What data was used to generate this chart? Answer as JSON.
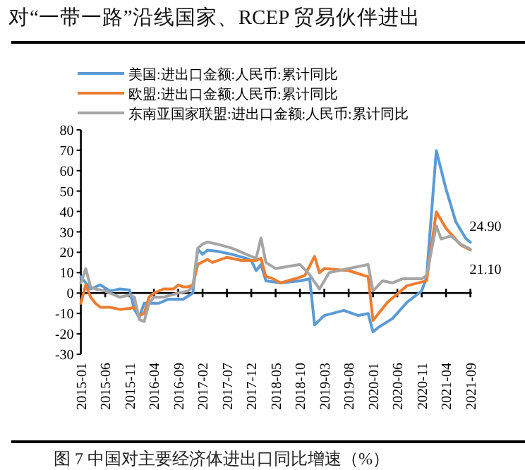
{
  "chart_data": {
    "type": "line",
    "title": "对“一带一路”沿线国家、RCEP 贸易伙伴进出",
    "annotations": [
      "图 7  中国对主要经济体进出口同比增速（%）",
      {
        "text": "24.90",
        "x": "2021-09",
        "y": 24.9
      },
      {
        "text": "21.10",
        "x": "2021-09",
        "y": 21.1
      }
    ],
    "xlim": [
      "2015-01",
      "2021-09"
    ],
    "xticks": [
      "2015-01",
      "2015-06",
      "2015-11",
      "2016-04",
      "2016-09",
      "2017-02",
      "2017-07",
      "2017-12",
      "2018-05",
      "2018-10",
      "2019-03",
      "2019-08",
      "2020-01",
      "2020-06",
      "2020-11",
      "2021-04",
      "2021-09"
    ],
    "ylim": [
      -30,
      80
    ],
    "yticks": [
      -30,
      -20,
      -10,
      0,
      10,
      20,
      30,
      40,
      50,
      60,
      70,
      80
    ],
    "legend": "top",
    "line_style": "solid",
    "marker": "none",
    "series": [
      {
        "name": "美国:进出口金额:人民币:累计同比",
        "color": "#5b9bd5",
        "x": [
          "2015-01",
          "2015-03",
          "2015-05",
          "2015-07",
          "2015-09",
          "2015-11",
          "2015-12",
          "2016-01",
          "2016-02",
          "2016-05",
          "2016-07",
          "2016-10",
          "2016-12",
          "2017-01",
          "2017-02",
          "2017-03",
          "2017-05",
          "2017-08",
          "2017-11",
          "2017-12",
          "2018-01",
          "2018-02",
          "2018-03",
          "2018-06",
          "2018-10",
          "2018-12",
          "2019-01",
          "2019-03",
          "2019-07",
          "2019-10",
          "2019-12",
          "2020-01",
          "2020-02",
          "2020-05",
          "2020-08",
          "2020-11",
          "2020-12",
          "2021-02",
          "2021-04",
          "2021-06",
          "2021-08",
          "2021-09"
        ],
        "values": [
          8,
          2,
          4,
          1,
          2,
          1.5,
          -8,
          -12,
          -5,
          -5,
          -3,
          -3,
          0,
          21.5,
          19,
          21,
          20.5,
          19,
          17,
          16,
          11,
          14,
          6,
          5,
          6,
          7,
          -15.6,
          -11,
          -8.5,
          -11,
          -10,
          -19,
          -17,
          -12.5,
          -4.5,
          1,
          7.6,
          69.8,
          51,
          35,
          27,
          24.9
        ]
      },
      {
        "name": "欧盟:进出口金额:人民币:累计同比",
        "color": "#ed7d31",
        "x": [
          "2015-01",
          "2015-02",
          "2015-03",
          "2015-04",
          "2015-05",
          "2015-07",
          "2015-09",
          "2015-11",
          "2015-12",
          "2016-01",
          "2016-02",
          "2016-03",
          "2016-04",
          "2016-06",
          "2016-08",
          "2016-09",
          "2016-10",
          "2016-11",
          "2016-12",
          "2017-01",
          "2017-03",
          "2017-04",
          "2017-07",
          "2017-10",
          "2018-01",
          "2018-02",
          "2018-03",
          "2018-04",
          "2018-06",
          "2018-09",
          "2018-11",
          "2019-01",
          "2019-02",
          "2019-03",
          "2019-08",
          "2019-12",
          "2020-01",
          "2020-04",
          "2020-08",
          "2020-12",
          "2021-02",
          "2021-04",
          "2021-07",
          "2021-09"
        ],
        "values": [
          -5,
          4,
          -2,
          -5,
          -7,
          -7,
          -8,
          -7.5,
          -7,
          -11,
          -10,
          -2,
          0,
          2,
          2,
          4,
          3,
          3,
          4,
          14,
          16.5,
          15,
          17.5,
          16,
          16,
          17,
          8,
          7.5,
          5,
          7,
          8.6,
          18,
          10,
          12,
          11,
          8,
          -13.4,
          -4.5,
          3.6,
          6,
          39.8,
          31.7,
          23.6,
          21.1
        ]
      },
      {
        "name": "东南亚国家联盟:进出口金额:人民币:累计同比",
        "color": "#a5a5a5",
        "x": [
          "2015-01",
          "2015-02",
          "2015-03",
          "2015-04",
          "2015-06",
          "2015-08",
          "2015-09",
          "2015-11",
          "2015-12",
          "2016-01",
          "2016-02",
          "2016-03",
          "2016-04",
          "2016-06",
          "2016-09",
          "2016-11",
          "2016-12",
          "2017-01",
          "2017-02",
          "2017-03",
          "2017-05",
          "2017-08",
          "2017-11",
          "2018-01",
          "2018-02",
          "2018-03",
          "2018-05",
          "2018-10",
          "2018-12",
          "2019-02",
          "2019-04",
          "2019-08",
          "2019-12",
          "2020-01",
          "2020-03",
          "2020-05",
          "2020-07",
          "2020-11",
          "2020-12",
          "2021-02",
          "2021-03",
          "2021-05",
          "2021-07",
          "2021-09"
        ],
        "values": [
          5,
          12,
          3,
          2,
          1,
          -1,
          -2,
          -1,
          -2,
          -13,
          -14,
          -5,
          -2,
          -2,
          0,
          1,
          3,
          22,
          24,
          25,
          24,
          22,
          19,
          17,
          27,
          15,
          12,
          14,
          9,
          2,
          10,
          12,
          14,
          1,
          6,
          5,
          7,
          7,
          8.6,
          33,
          26.5,
          28,
          24,
          21.5
        ]
      }
    ]
  }
}
